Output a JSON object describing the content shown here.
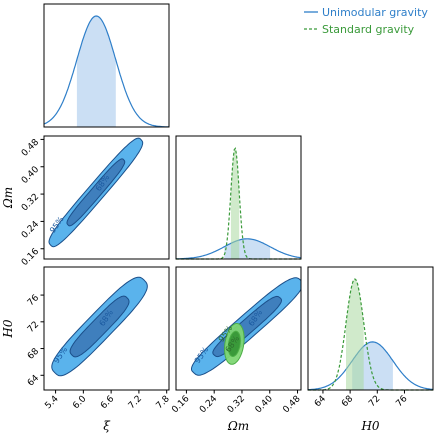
{
  "chart_data": {
    "type": "corner",
    "legend": {
      "placement": "top-right",
      "entries": [
        {
          "name": "Unimodular gravity",
          "color": "#2f7fc9",
          "style": "solid"
        },
        {
          "name": "Standard gravity",
          "color": "#3a9a3a",
          "style": "dashed"
        }
      ]
    },
    "colors": {
      "unimodular_fill_95": "#5ab3ec",
      "unimodular_fill_68": "#3f7fbd",
      "unimodular_edge": "#1b4f8a",
      "standard_fill_95": "#7ed673",
      "standard_fill_68": "#3a9a3a"
    },
    "parameters": [
      {
        "name": "xi",
        "label": "ξ",
        "range": [
          5.15,
          7.85
        ],
        "ticks": [
          "5.4",
          "6.0",
          "6.6",
          "7.2",
          "7.8"
        ],
        "tick_values": [
          5.4,
          6.0,
          6.6,
          7.2,
          7.8
        ]
      },
      {
        "name": "Omega_m",
        "label": "Ωm",
        "range": [
          0.13,
          0.49
        ],
        "ticks": [
          "0.16",
          "0.24",
          "0.32",
          "0.40",
          "0.48"
        ],
        "tick_values": [
          0.16,
          0.24,
          0.32,
          0.4,
          0.48
        ]
      },
      {
        "name": "H0",
        "label": "H0",
        "range": [
          61.8,
          80.2
        ],
        "ticks": [
          "64",
          "68",
          "72",
          "76"
        ],
        "tick_values": [
          64,
          68,
          72,
          76
        ]
      }
    ],
    "marginals": [
      {
        "param": "xi",
        "series": [
          {
            "name": "Unimodular gravity",
            "mean": 6.28,
            "sigma": 0.42,
            "band68": [
              5.86,
              6.7
            ]
          }
        ]
      },
      {
        "param": "Omega_m",
        "series": [
          {
            "name": "Unimodular gravity",
            "mean": 0.335,
            "sigma": 0.066,
            "band68": [
              0.269,
              0.401
            ]
          },
          {
            "name": "Standard gravity",
            "mean": 0.3,
            "sigma": 0.012,
            "band68": [
              0.288,
              0.312
            ]
          }
        ]
      },
      {
        "param": "H0",
        "series": [
          {
            "name": "Unimodular gravity",
            "mean": 71.3,
            "sigma": 3.0,
            "band68": [
              68.3,
              74.3
            ]
          },
          {
            "name": "Standard gravity",
            "mean": 68.7,
            "sigma": 1.3,
            "band68": [
              67.4,
              70.0
            ]
          }
        ]
      }
    ],
    "contours": [
      {
        "x": "xi",
        "y": "Omega_m",
        "series": [
          {
            "name": "Unimodular gravity",
            "center": [
              6.27,
              0.325
            ],
            "sigma_x": 0.42,
            "sigma_y": 0.066,
            "rho": 0.97,
            "p": 3.2,
            "labels": {
              "68": "68%",
              "95": "95%"
            }
          }
        ]
      },
      {
        "x": "xi",
        "y": "H0",
        "series": [
          {
            "name": "Unimodular gravity",
            "center": [
              6.35,
              71.3
            ],
            "sigma_x": 0.42,
            "sigma_y": 3.0,
            "rho": 0.92,
            "p": 3.2,
            "labels": {
              "68": "68%",
              "95": "95%"
            }
          }
        ]
      },
      {
        "x": "Omega_m",
        "y": "H0",
        "series": [
          {
            "name": "Unimodular gravity",
            "center": [
              0.335,
              71.3
            ],
            "sigma_x": 0.066,
            "sigma_y": 3.0,
            "rho": 0.95,
            "p": 3.2,
            "labels": {
              "68": "68%",
              "95": "95%"
            }
          },
          {
            "name": "Standard gravity",
            "center": [
              0.298,
              68.7
            ],
            "sigma_x": 0.012,
            "sigma_y": 1.3,
            "rho": 0.25,
            "p": 2.0,
            "labels": {
              "68": "68%",
              "95": "95%"
            }
          }
        ]
      }
    ]
  }
}
